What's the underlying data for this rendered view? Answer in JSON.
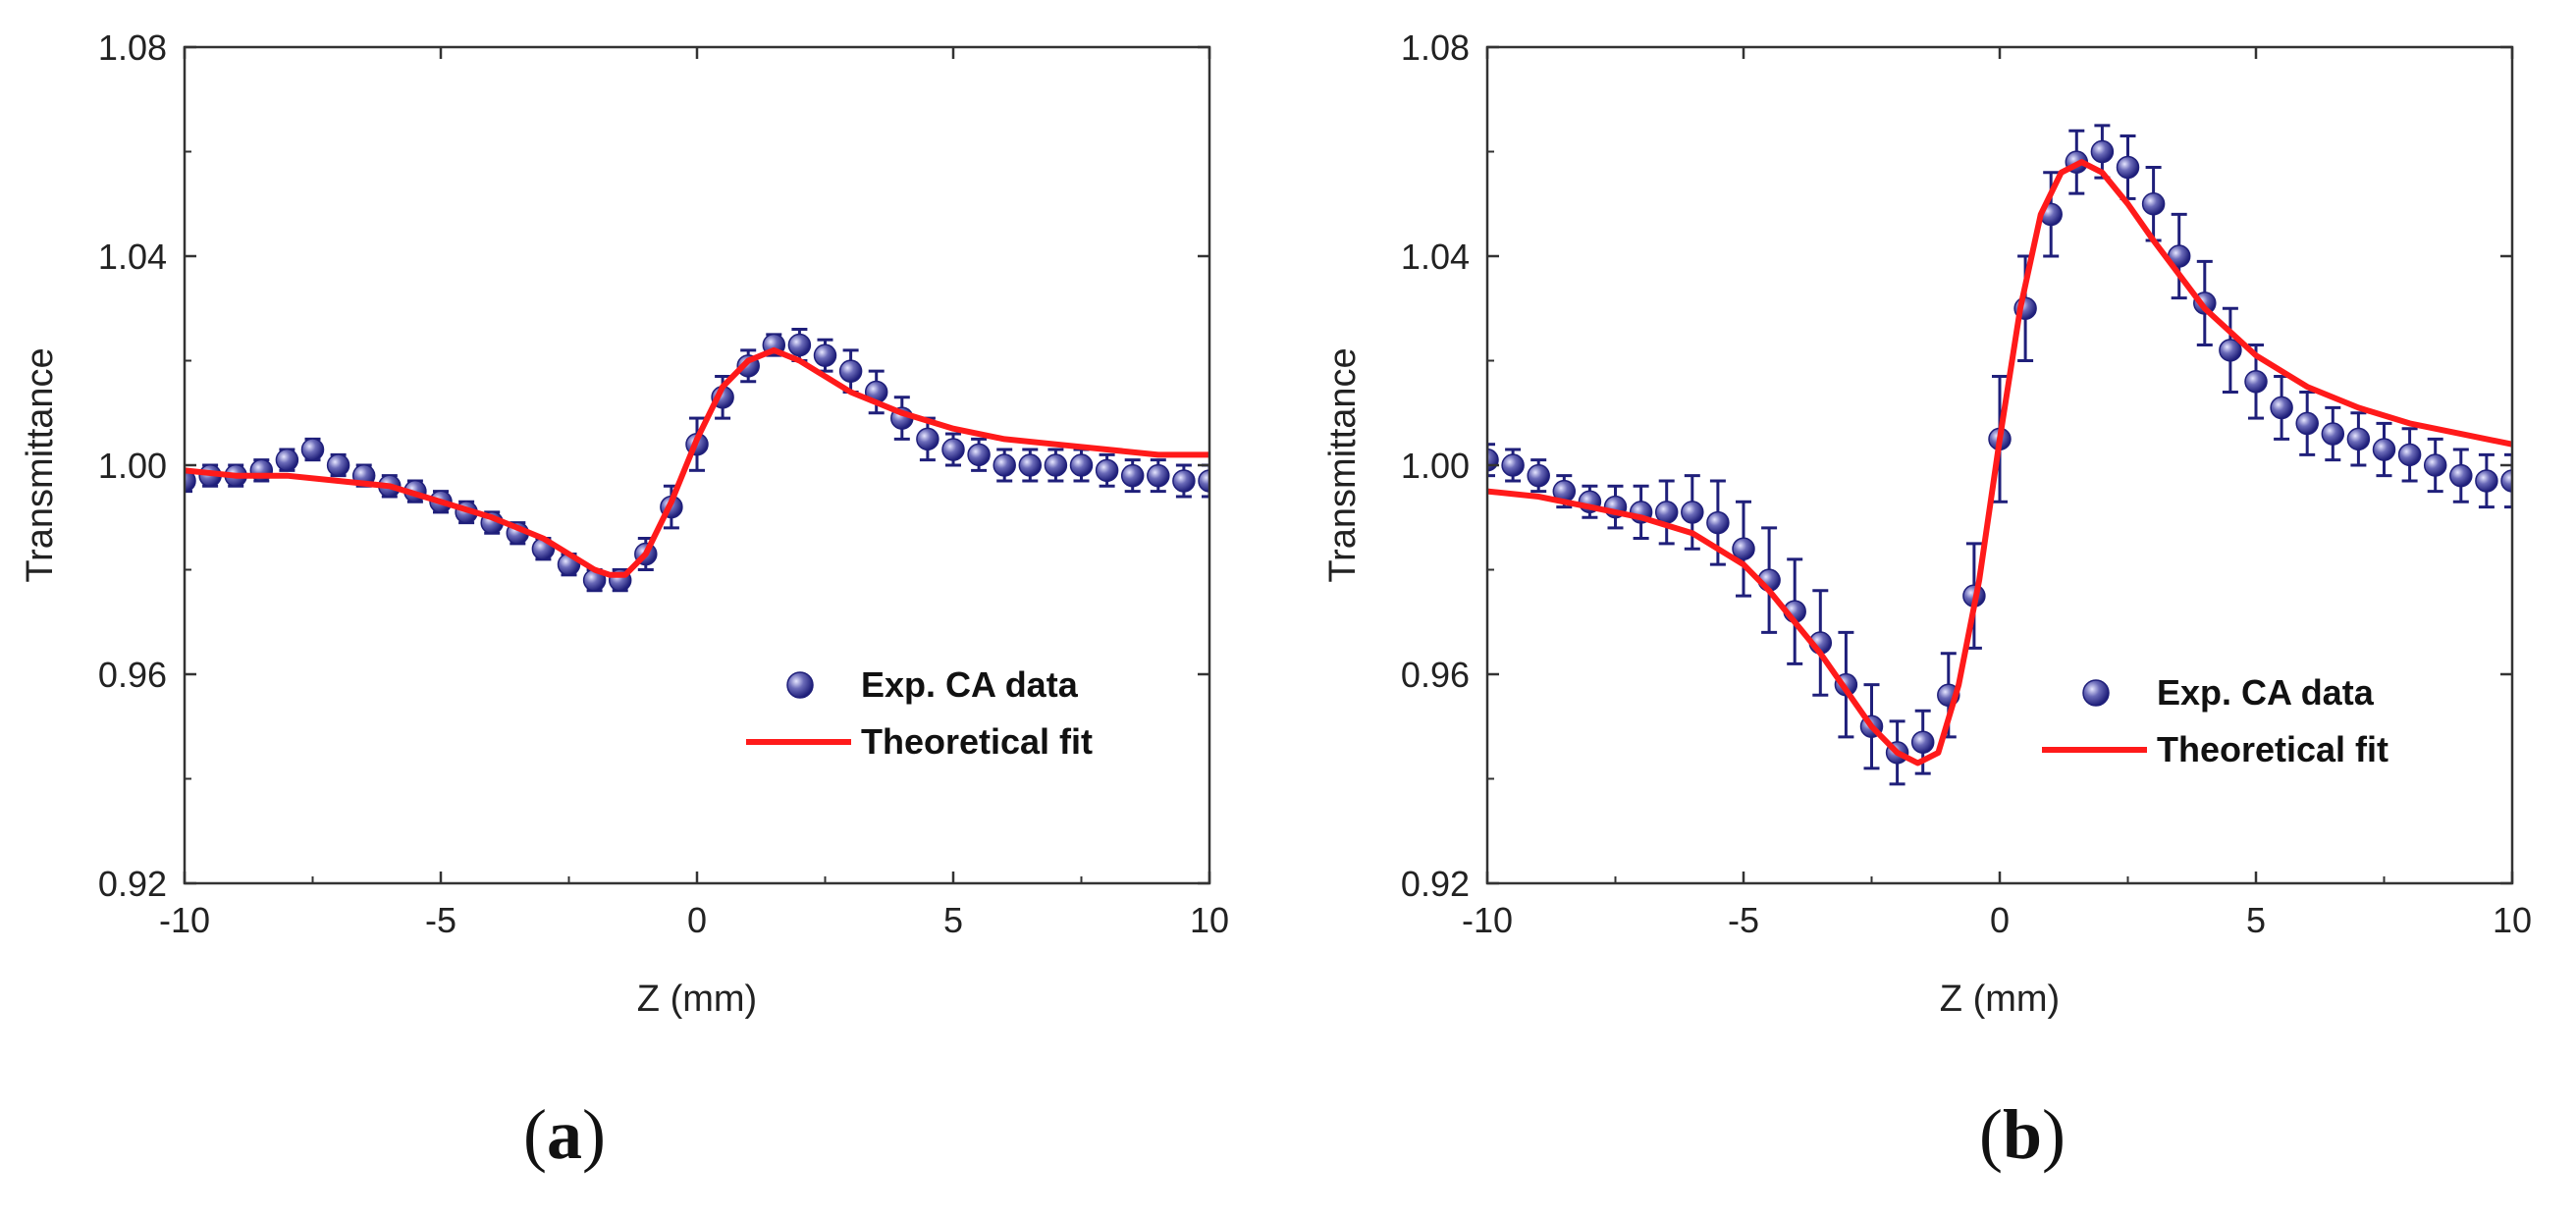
{
  "chart_data": [
    {
      "type": "scatter",
      "panel_label": "a",
      "xlabel": "Z (mm)",
      "ylabel": "Transmittance",
      "xlim": [
        -10,
        10
      ],
      "ylim": [
        0.92,
        1.08
      ],
      "x_ticks": [
        -10,
        -5,
        0,
        5,
        10
      ],
      "x_tick_labels": [
        "-10",
        "-5",
        "0",
        "5",
        "10"
      ],
      "y_ticks": [
        0.92,
        0.96,
        1.0,
        1.04,
        1.08
      ],
      "y_tick_labels": [
        "0.92",
        "0.96",
        "1.00",
        "1.04",
        "1.08"
      ],
      "legend_position": "bottom-right",
      "series": [
        {
          "name": "Exp. CA data",
          "kind": "points-with-error",
          "color": "#1f1f7a",
          "x": [
            -10,
            -9.5,
            -9,
            -8.5,
            -8,
            -7.5,
            -7,
            -6.5,
            -6,
            -5.5,
            -5,
            -4.5,
            -4,
            -3.5,
            -3,
            -2.5,
            -2,
            -1.5,
            -1,
            -0.5,
            0,
            0.5,
            1,
            1.5,
            2,
            2.5,
            3,
            3.5,
            4,
            4.5,
            5,
            5.5,
            6,
            6.5,
            7,
            7.5,
            8,
            8.5,
            9,
            9.5,
            10
          ],
          "y": [
            0.997,
            0.998,
            0.998,
            0.999,
            1.001,
            1.003,
            1.0,
            0.998,
            0.996,
            0.995,
            0.993,
            0.991,
            0.989,
            0.987,
            0.984,
            0.981,
            0.978,
            0.978,
            0.983,
            0.992,
            1.004,
            1.013,
            1.019,
            1.023,
            1.023,
            1.021,
            1.018,
            1.014,
            1.009,
            1.005,
            1.003,
            1.002,
            1.0,
            1.0,
            1.0,
            1.0,
            0.999,
            0.998,
            0.998,
            0.997,
            0.997
          ],
          "err": [
            0.002,
            0.002,
            0.002,
            0.002,
            0.002,
            0.002,
            0.002,
            0.002,
            0.002,
            0.002,
            0.002,
            0.002,
            0.002,
            0.002,
            0.002,
            0.002,
            0.002,
            0.002,
            0.003,
            0.004,
            0.005,
            0.004,
            0.003,
            0.002,
            0.003,
            0.003,
            0.004,
            0.004,
            0.004,
            0.004,
            0.003,
            0.003,
            0.003,
            0.003,
            0.003,
            0.003,
            0.003,
            0.003,
            0.003,
            0.003,
            0.003
          ]
        },
        {
          "name": "Theoretical fit",
          "kind": "line",
          "color": "#ff1a1a",
          "x": [
            -10,
            -9,
            -8,
            -7,
            -6,
            -5,
            -4,
            -3.5,
            -3,
            -2.5,
            -2,
            -1.7,
            -1.4,
            -1,
            -0.5,
            0,
            0.5,
            1,
            1.5,
            2,
            2.5,
            3,
            3.5,
            4,
            5,
            6,
            7,
            8,
            9,
            10
          ],
          "y": [
            0.999,
            0.998,
            0.998,
            0.997,
            0.996,
            0.993,
            0.99,
            0.988,
            0.986,
            0.983,
            0.98,
            0.979,
            0.979,
            0.983,
            0.993,
            1.005,
            1.015,
            1.02,
            1.022,
            1.02,
            1.017,
            1.014,
            1.012,
            1.01,
            1.007,
            1.005,
            1.004,
            1.003,
            1.002,
            1.002
          ]
        }
      ]
    },
    {
      "type": "scatter",
      "panel_label": "b",
      "xlabel": "Z (mm)",
      "ylabel": "Transmittance",
      "xlim": [
        -10,
        10
      ],
      "ylim": [
        0.92,
        1.08
      ],
      "x_ticks": [
        -10,
        -5,
        0,
        5,
        10
      ],
      "x_tick_labels": [
        "-10",
        "-5",
        "0",
        "5",
        "10"
      ],
      "y_ticks": [
        0.92,
        0.96,
        1.0,
        1.04,
        1.08
      ],
      "y_tick_labels": [
        "0.92",
        "0.96",
        "1.00",
        "1.04",
        "1.08"
      ],
      "legend_position": "bottom-right",
      "series": [
        {
          "name": "Exp. CA data",
          "kind": "points-with-error",
          "color": "#1f1f7a",
          "x": [
            -10,
            -9.5,
            -9,
            -8.5,
            -8,
            -7.5,
            -7,
            -6.5,
            -6,
            -5.5,
            -5,
            -4.5,
            -4,
            -3.5,
            -3,
            -2.5,
            -2,
            -1.5,
            -1,
            -0.5,
            0,
            0.5,
            1,
            1.5,
            2,
            2.5,
            3,
            3.5,
            4,
            4.5,
            5,
            5.5,
            6,
            6.5,
            7,
            7.5,
            8,
            8.5,
            9,
            9.5,
            10
          ],
          "y": [
            1.001,
            1.0,
            0.998,
            0.995,
            0.993,
            0.992,
            0.991,
            0.991,
            0.991,
            0.989,
            0.984,
            0.978,
            0.972,
            0.966,
            0.958,
            0.95,
            0.945,
            0.947,
            0.956,
            0.975,
            1.005,
            1.03,
            1.048,
            1.058,
            1.06,
            1.057,
            1.05,
            1.04,
            1.031,
            1.022,
            1.016,
            1.011,
            1.008,
            1.006,
            1.005,
            1.003,
            1.002,
            1.0,
            0.998,
            0.997,
            0.997
          ],
          "err": [
            0.003,
            0.003,
            0.003,
            0.003,
            0.003,
            0.004,
            0.005,
            0.006,
            0.007,
            0.008,
            0.009,
            0.01,
            0.01,
            0.01,
            0.01,
            0.008,
            0.006,
            0.006,
            0.008,
            0.01,
            0.012,
            0.01,
            0.008,
            0.006,
            0.005,
            0.006,
            0.007,
            0.008,
            0.008,
            0.008,
            0.007,
            0.006,
            0.006,
            0.005,
            0.005,
            0.005,
            0.005,
            0.005,
            0.005,
            0.005,
            0.005
          ]
        },
        {
          "name": "Theoretical fit",
          "kind": "line",
          "color": "#ff1a1a",
          "x": [
            -10,
            -9,
            -8,
            -7,
            -6,
            -5,
            -4.5,
            -4,
            -3.5,
            -3,
            -2.5,
            -2,
            -1.6,
            -1.2,
            -0.8,
            -0.4,
            0,
            0.4,
            0.8,
            1.2,
            1.6,
            2,
            2.5,
            3,
            4,
            5,
            6,
            7,
            8,
            9,
            10
          ],
          "y": [
            0.995,
            0.994,
            0.992,
            0.99,
            0.987,
            0.981,
            0.976,
            0.97,
            0.964,
            0.957,
            0.95,
            0.945,
            0.943,
            0.945,
            0.958,
            0.978,
            1.005,
            1.03,
            1.048,
            1.056,
            1.058,
            1.056,
            1.05,
            1.043,
            1.03,
            1.021,
            1.015,
            1.011,
            1.008,
            1.006,
            1.004
          ]
        }
      ]
    }
  ]
}
